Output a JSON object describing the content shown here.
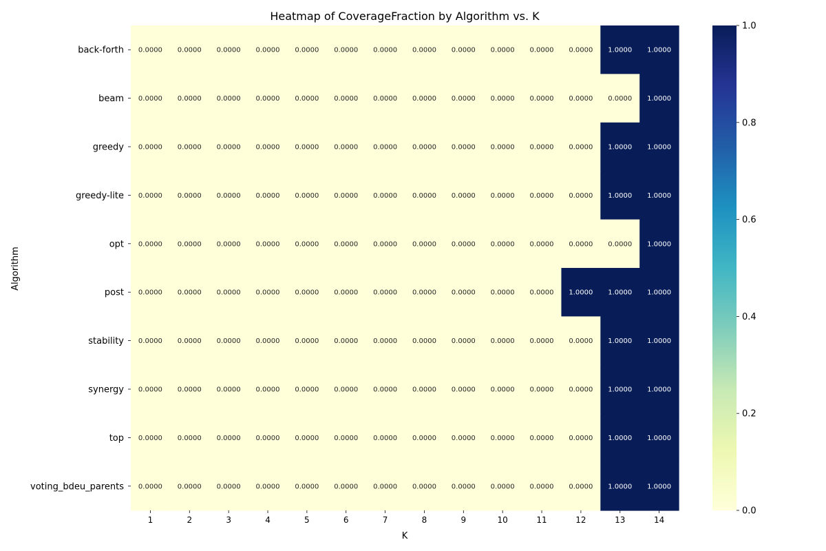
{
  "chart_data": {
    "type": "heatmap",
    "title": "Heatmap of CoverageFraction by Algorithm vs. K",
    "xlabel": "K",
    "ylabel": "Algorithm",
    "x": [
      "1",
      "2",
      "3",
      "4",
      "5",
      "6",
      "7",
      "8",
      "9",
      "10",
      "11",
      "12",
      "13",
      "14"
    ],
    "y": [
      "back-forth",
      "beam",
      "greedy",
      "greedy-lite",
      "opt",
      "post",
      "stability",
      "synergy",
      "top",
      "voting_bdeu_parents"
    ],
    "values": [
      [
        0,
        0,
        0,
        0,
        0,
        0,
        0,
        0,
        0,
        0,
        0,
        0,
        1,
        1
      ],
      [
        0,
        0,
        0,
        0,
        0,
        0,
        0,
        0,
        0,
        0,
        0,
        0,
        0,
        1
      ],
      [
        0,
        0,
        0,
        0,
        0,
        0,
        0,
        0,
        0,
        0,
        0,
        0,
        1,
        1
      ],
      [
        0,
        0,
        0,
        0,
        0,
        0,
        0,
        0,
        0,
        0,
        0,
        0,
        1,
        1
      ],
      [
        0,
        0,
        0,
        0,
        0,
        0,
        0,
        0,
        0,
        0,
        0,
        0,
        0,
        1
      ],
      [
        0,
        0,
        0,
        0,
        0,
        0,
        0,
        0,
        0,
        0,
        0,
        1,
        1,
        1
      ],
      [
        0,
        0,
        0,
        0,
        0,
        0,
        0,
        0,
        0,
        0,
        0,
        0,
        1,
        1
      ],
      [
        0,
        0,
        0,
        0,
        0,
        0,
        0,
        0,
        0,
        0,
        0,
        0,
        1,
        1
      ],
      [
        0,
        0,
        0,
        0,
        0,
        0,
        0,
        0,
        0,
        0,
        0,
        0,
        1,
        1
      ],
      [
        0,
        0,
        0,
        0,
        0,
        0,
        0,
        0,
        0,
        0,
        0,
        0,
        1,
        1
      ]
    ],
    "value_format_decimals": 4,
    "colormap": "YlGnBu",
    "colormap_stops": [
      "#ffffd9",
      "#edf8b1",
      "#c7e9b4",
      "#7fcdbb",
      "#41b6c4",
      "#1d91c0",
      "#225ea8",
      "#253494",
      "#081d58"
    ],
    "colorbar": {
      "range": [
        0,
        1
      ],
      "ticks": [
        "0.0",
        "0.2",
        "0.4",
        "0.6",
        "0.8",
        "1.0"
      ]
    },
    "cell_text_colors": {
      "low": "#262626",
      "high": "#ffffff"
    }
  }
}
